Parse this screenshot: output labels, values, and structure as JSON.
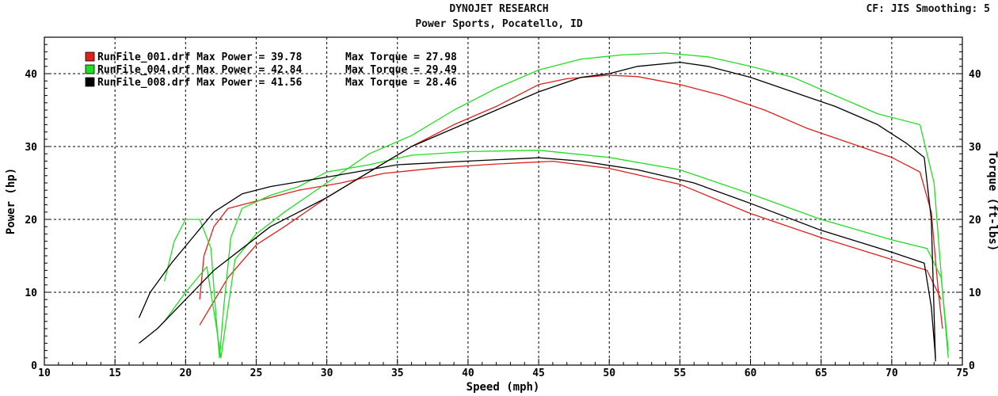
{
  "header": {
    "title": "DYNOJET RESEARCH",
    "subtitle": "Power Sports, Pocatello, ID",
    "corner": "CF: JIS  Smoothing: 5"
  },
  "chart_data": {
    "type": "line",
    "xlabel": "Speed (mph)",
    "ylabel": "Power (hp)",
    "y2label": "Torque (ft-lbs)",
    "xlim": [
      10,
      75
    ],
    "ylim": [
      0,
      45
    ],
    "xticks": [
      10,
      15,
      20,
      25,
      30,
      35,
      40,
      45,
      50,
      55,
      60,
      65,
      70,
      75
    ],
    "yticks": [
      0,
      10,
      20,
      30,
      40
    ],
    "grid": true,
    "legend_position": "top-left",
    "legend": [
      {
        "name": "RunFile_001.drf",
        "color": "#e0201c",
        "text": "RunFile_001.drf Max Power = 39.78",
        "torque_text": "Max Torque = 27.98"
      },
      {
        "name": "RunFile_004.drf",
        "color": "#22dd22",
        "text": "RunFile_004.drf Max Power = 42.84",
        "torque_text": "Max Torque = 29.49"
      },
      {
        "name": "RunFile_008.drf",
        "color": "#000000",
        "text": "RunFile_008.drf Max Power = 41.56",
        "torque_text": "Max Torque = 28.46"
      }
    ],
    "series": [
      {
        "name": "RunFile_001.drf",
        "measure": "power",
        "color": "#e0201c",
        "x": [
          21.0,
          23,
          25,
          27,
          30,
          33,
          36,
          39,
          42,
          45,
          47,
          50,
          52,
          55,
          58,
          61,
          64,
          67,
          70,
          72,
          72.8,
          73.3,
          73.6
        ],
        "y": [
          5.5,
          12,
          16.5,
          19,
          23,
          26.5,
          30,
          33,
          35.5,
          38.5,
          39.3,
          39.78,
          39.6,
          38.5,
          37,
          35,
          32.5,
          30.5,
          28.5,
          26.5,
          21,
          10,
          5
        ]
      },
      {
        "name": "RunFile_001.drf",
        "measure": "torque",
        "color": "#e0201c",
        "x": [
          21.0,
          21.3,
          22,
          23,
          25,
          28,
          31,
          34,
          38,
          42,
          46,
          50,
          55,
          60,
          65,
          70,
          72.5,
          73.5
        ],
        "y": [
          9,
          15,
          19,
          21.5,
          22.5,
          24,
          25,
          26.3,
          27.1,
          27.6,
          27.98,
          27,
          24.8,
          20.8,
          17.5,
          14.5,
          13,
          9
        ]
      },
      {
        "name": "RunFile_004.drf",
        "measure": "power",
        "color": "#22dd22",
        "x": [
          18.5,
          20,
          21.5,
          22.2,
          22.5,
          22.8,
          23.5,
          25,
          27,
          30,
          33,
          36,
          39,
          42,
          45,
          48,
          51,
          54,
          57,
          60,
          63,
          66,
          69,
          72,
          73,
          73.6,
          74.0
        ],
        "y": [
          6,
          10,
          13.5,
          5,
          1,
          5,
          14.5,
          18,
          21,
          25,
          29,
          31.5,
          35,
          38,
          40.5,
          42,
          42.6,
          42.84,
          42.3,
          41,
          39.5,
          37,
          34.5,
          33,
          25,
          10,
          1
        ]
      },
      {
        "name": "RunFile_004.drf",
        "measure": "torque",
        "color": "#22dd22",
        "x": [
          18.5,
          19.2,
          20,
          21,
          21.8,
          22.1,
          22.4,
          22.7,
          23.2,
          24,
          26,
          28,
          30,
          33,
          36,
          40,
          45,
          50,
          55,
          60,
          65,
          70,
          72.5,
          73.5,
          74.0
        ],
        "y": [
          11.5,
          17,
          20,
          20,
          16,
          8,
          1,
          8,
          17.5,
          21.5,
          23.3,
          24.5,
          26.5,
          27.5,
          28.8,
          29.3,
          29.49,
          28.5,
          26.8,
          23.5,
          20,
          17.2,
          16,
          12,
          2
        ]
      },
      {
        "name": "RunFile_008.drf",
        "measure": "power",
        "color": "#000000",
        "x": [
          16.7,
          18,
          20,
          22,
          24,
          26,
          28,
          30,
          33,
          36,
          39,
          42,
          45,
          48,
          50,
          52,
          55,
          57,
          60,
          63,
          66,
          69,
          71,
          72.3,
          72.8,
          73.1
        ],
        "y": [
          3,
          5,
          9,
          13,
          16,
          19,
          21,
          23,
          26.5,
          30,
          32.5,
          35,
          37.5,
          39.5,
          40,
          41,
          41.56,
          41,
          39.5,
          37.5,
          35.5,
          33,
          30.5,
          28.5,
          20,
          0.5
        ]
      },
      {
        "name": "RunFile_008.drf",
        "measure": "torque",
        "color": "#000000",
        "x": [
          16.7,
          17.5,
          19,
          20.5,
          22,
          24,
          26,
          30,
          35,
          40,
          45,
          48,
          52,
          56,
          60,
          65,
          70,
          72.3,
          72.8,
          73.1
        ],
        "y": [
          6.5,
          10,
          14,
          17.5,
          21,
          23.5,
          24.5,
          25.8,
          27.5,
          28,
          28.46,
          28,
          26.8,
          25,
          22.2,
          18.5,
          15.5,
          14,
          8,
          1
        ]
      }
    ]
  }
}
